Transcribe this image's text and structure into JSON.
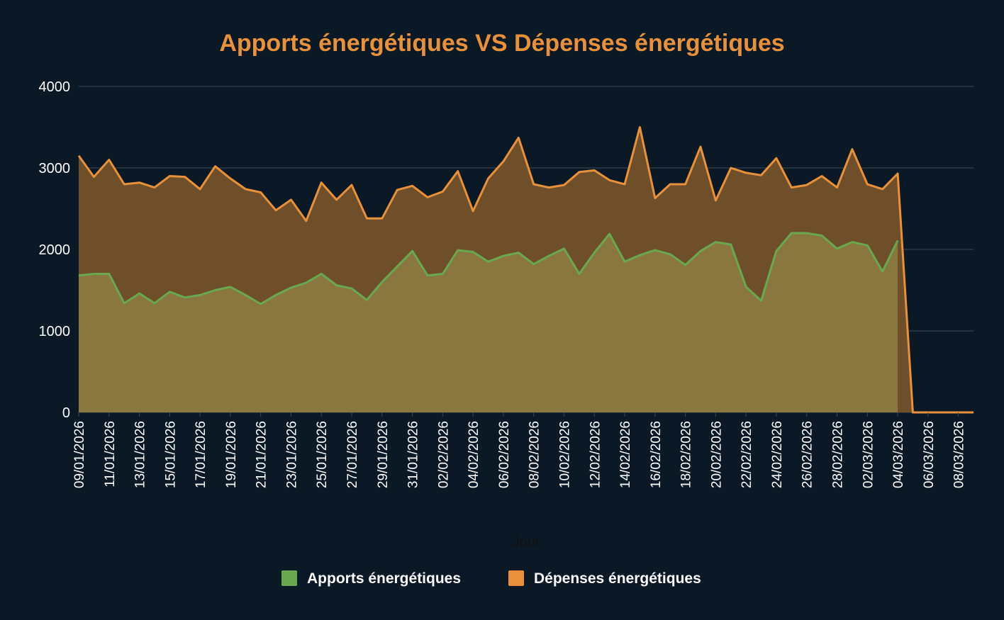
{
  "chart_data": {
    "type": "area",
    "title": "Apports énergétiques VS Dépenses énergétiques",
    "xlabel": "Jour",
    "ylabel": "",
    "ylim": [
      0,
      4000
    ],
    "yticks": [
      "0",
      "1000",
      "2000",
      "3000",
      "4000"
    ],
    "grid": true,
    "legend_position": "bottom",
    "colors": {
      "background": "#0b1826",
      "title": "#e8913a",
      "text": "#ffffff",
      "axis_title": "#111111",
      "grid": "#3e4a57"
    },
    "x": [
      "09/01/2026",
      "10/01/2026",
      "11/01/2026",
      "12/01/2026",
      "13/01/2026",
      "14/01/2026",
      "15/01/2026",
      "16/01/2026",
      "17/01/2026",
      "18/01/2026",
      "19/01/2026",
      "20/01/2026",
      "21/01/2026",
      "22/01/2026",
      "23/01/2026",
      "24/01/2026",
      "25/01/2026",
      "26/01/2026",
      "27/01/2026",
      "28/01/2026",
      "29/01/2026",
      "30/01/2026",
      "31/01/2026",
      "01/02/2026",
      "02/02/2026",
      "03/02/2026",
      "04/02/2026",
      "05/02/2026",
      "06/02/2026",
      "07/02/2026",
      "08/02/2026",
      "09/02/2026",
      "10/02/2026",
      "11/02/2026",
      "12/02/2026",
      "13/02/2026",
      "14/02/2026",
      "15/02/2026",
      "16/02/2026",
      "17/02/2026",
      "18/02/2026",
      "19/02/2026",
      "20/02/2026",
      "21/02/2026",
      "22/02/2026",
      "23/02/2026",
      "24/02/2026",
      "25/02/2026",
      "26/02/2026",
      "27/02/2026",
      "28/02/2026",
      "01/03/2026",
      "02/03/2026",
      "03/03/2026",
      "04/03/2026",
      "05/03/2026",
      "06/03/2026",
      "07/03/2026",
      "08/03/2026",
      "09/03/2026"
    ],
    "x_tick_labels": [
      "09/01/2026",
      "11/01/2026",
      "13/01/2026",
      "15/01/2026",
      "17/01/2026",
      "19/01/2026",
      "21/01/2026",
      "23/01/2026",
      "25/01/2026",
      "27/01/2026",
      "29/01/2026",
      "31/01/2026",
      "02/02/2026",
      "04/02/2026",
      "06/02/2026",
      "08/02/2026",
      "10/02/2026",
      "12/02/2026",
      "14/02/2026",
      "16/02/2026",
      "18/02/2026",
      "20/02/2026",
      "22/02/2026",
      "24/02/2026",
      "26/02/2026",
      "28/02/2026",
      "02/03/2026",
      "04/03/2026",
      "06/03/2026",
      "08/03/2026"
    ],
    "series": [
      {
        "name": "Apports énergétiques",
        "color": "#6aa84f",
        "fill": "#8a7740",
        "values": [
          1680,
          1700,
          1700,
          1340,
          1460,
          1340,
          1480,
          1410,
          1440,
          1500,
          1540,
          1440,
          1330,
          1440,
          1530,
          1590,
          1700,
          1560,
          1520,
          1380,
          1600,
          1790,
          1980,
          1680,
          1700,
          1990,
          1970,
          1850,
          1920,
          1960,
          1820,
          1920,
          2010,
          1700,
          1960,
          2190,
          1850,
          1930,
          1990,
          1940,
          1810,
          1980,
          2090,
          2060,
          1540,
          1370,
          1980,
          2200,
          2200,
          2170,
          2010,
          2090,
          2050,
          1730,
          2110,
          null,
          null,
          null,
          null,
          null
        ]
      },
      {
        "name": "Dépenses énergétiques",
        "color": "#e8913a",
        "fill": "#6e4f2a",
        "values": [
          3150,
          2890,
          3100,
          2800,
          2820,
          2760,
          2900,
          2890,
          2740,
          3020,
          2870,
          2740,
          2700,
          2480,
          2610,
          2350,
          2820,
          2610,
          2790,
          2380,
          2380,
          2730,
          2780,
          2640,
          2710,
          2960,
          2470,
          2870,
          3080,
          3370,
          2800,
          2760,
          2790,
          2950,
          2970,
          2850,
          2800,
          3500,
          2630,
          2800,
          2800,
          3260,
          2600,
          3000,
          2940,
          2910,
          3120,
          2760,
          2790,
          2900,
          2760,
          3230,
          2800,
          2740,
          2930,
          0,
          0,
          0,
          0,
          0
        ]
      }
    ]
  }
}
